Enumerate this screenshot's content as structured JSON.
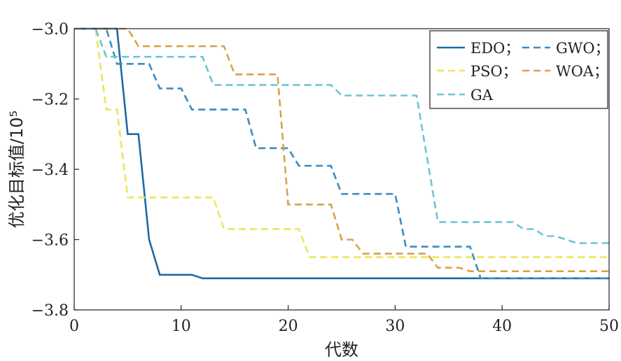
{
  "chart_data": {
    "type": "line",
    "xlabel": "代数",
    "ylabel": "优化目标值/10⁵",
    "xlim": [
      0,
      50
    ],
    "ylim": [
      -3.8,
      -3.0
    ],
    "xticks": [
      "0",
      "10",
      "20",
      "30",
      "40",
      "50"
    ],
    "yticks": [
      "−3.0",
      "−3.2",
      "−3.4",
      "−3.6",
      "−3.8"
    ],
    "grid": false,
    "legend_position": "top-right",
    "series": [
      {
        "name": "EDO",
        "legend_label": "EDO；",
        "color": "#1f6aa5",
        "dash": "solid",
        "x": [
          0,
          4,
          5,
          6,
          7,
          8,
          11,
          12,
          50
        ],
        "y": [
          -3.0,
          -3.0,
          -3.3,
          -3.3,
          -3.6,
          -3.7,
          -3.7,
          -3.71,
          -3.71
        ]
      },
      {
        "name": "GWO",
        "legend_label": "GWO；",
        "color": "#3a8cc1",
        "dash": "dashed",
        "x": [
          0,
          3,
          4,
          7,
          8,
          10,
          11,
          16,
          17,
          20,
          21,
          24,
          25,
          30,
          31,
          37,
          38,
          50
        ],
        "y": [
          -3.0,
          -3.0,
          -3.1,
          -3.1,
          -3.17,
          -3.17,
          -3.23,
          -3.23,
          -3.34,
          -3.34,
          -3.39,
          -3.39,
          -3.47,
          -3.47,
          -3.62,
          -3.62,
          -3.71,
          -3.71
        ]
      },
      {
        "name": "PSO",
        "legend_label": "PSO；",
        "color": "#ede55a",
        "dash": "dashed",
        "x": [
          0,
          2,
          3,
          4,
          5,
          13,
          14,
          21,
          22,
          50
        ],
        "y": [
          -3.0,
          -3.0,
          -3.23,
          -3.23,
          -3.48,
          -3.48,
          -3.57,
          -3.57,
          -3.65,
          -3.65
        ]
      },
      {
        "name": "WOA",
        "legend_label": "WOA；",
        "color": "#d8a24a",
        "dash": "dashed",
        "x": [
          0,
          5,
          6,
          14,
          15,
          19,
          20,
          24,
          25,
          26,
          27,
          33,
          34,
          36,
          37,
          50
        ],
        "y": [
          -3.0,
          -3.0,
          -3.05,
          -3.05,
          -3.13,
          -3.13,
          -3.5,
          -3.5,
          -3.6,
          -3.6,
          -3.64,
          -3.64,
          -3.68,
          -3.68,
          -3.69,
          -3.69
        ]
      },
      {
        "name": "GA",
        "legend_label": "GA",
        "color": "#6cc5d5",
        "dash": "dashed",
        "x": [
          0,
          2,
          3,
          12,
          13,
          24,
          25,
          32,
          34,
          41,
          42,
          43,
          44,
          45,
          46,
          47,
          50
        ],
        "y": [
          -3.0,
          -3.0,
          -3.08,
          -3.08,
          -3.16,
          -3.16,
          -3.19,
          -3.19,
          -3.55,
          -3.55,
          -3.57,
          -3.57,
          -3.59,
          -3.59,
          -3.6,
          -3.61,
          -3.61
        ]
      }
    ]
  }
}
